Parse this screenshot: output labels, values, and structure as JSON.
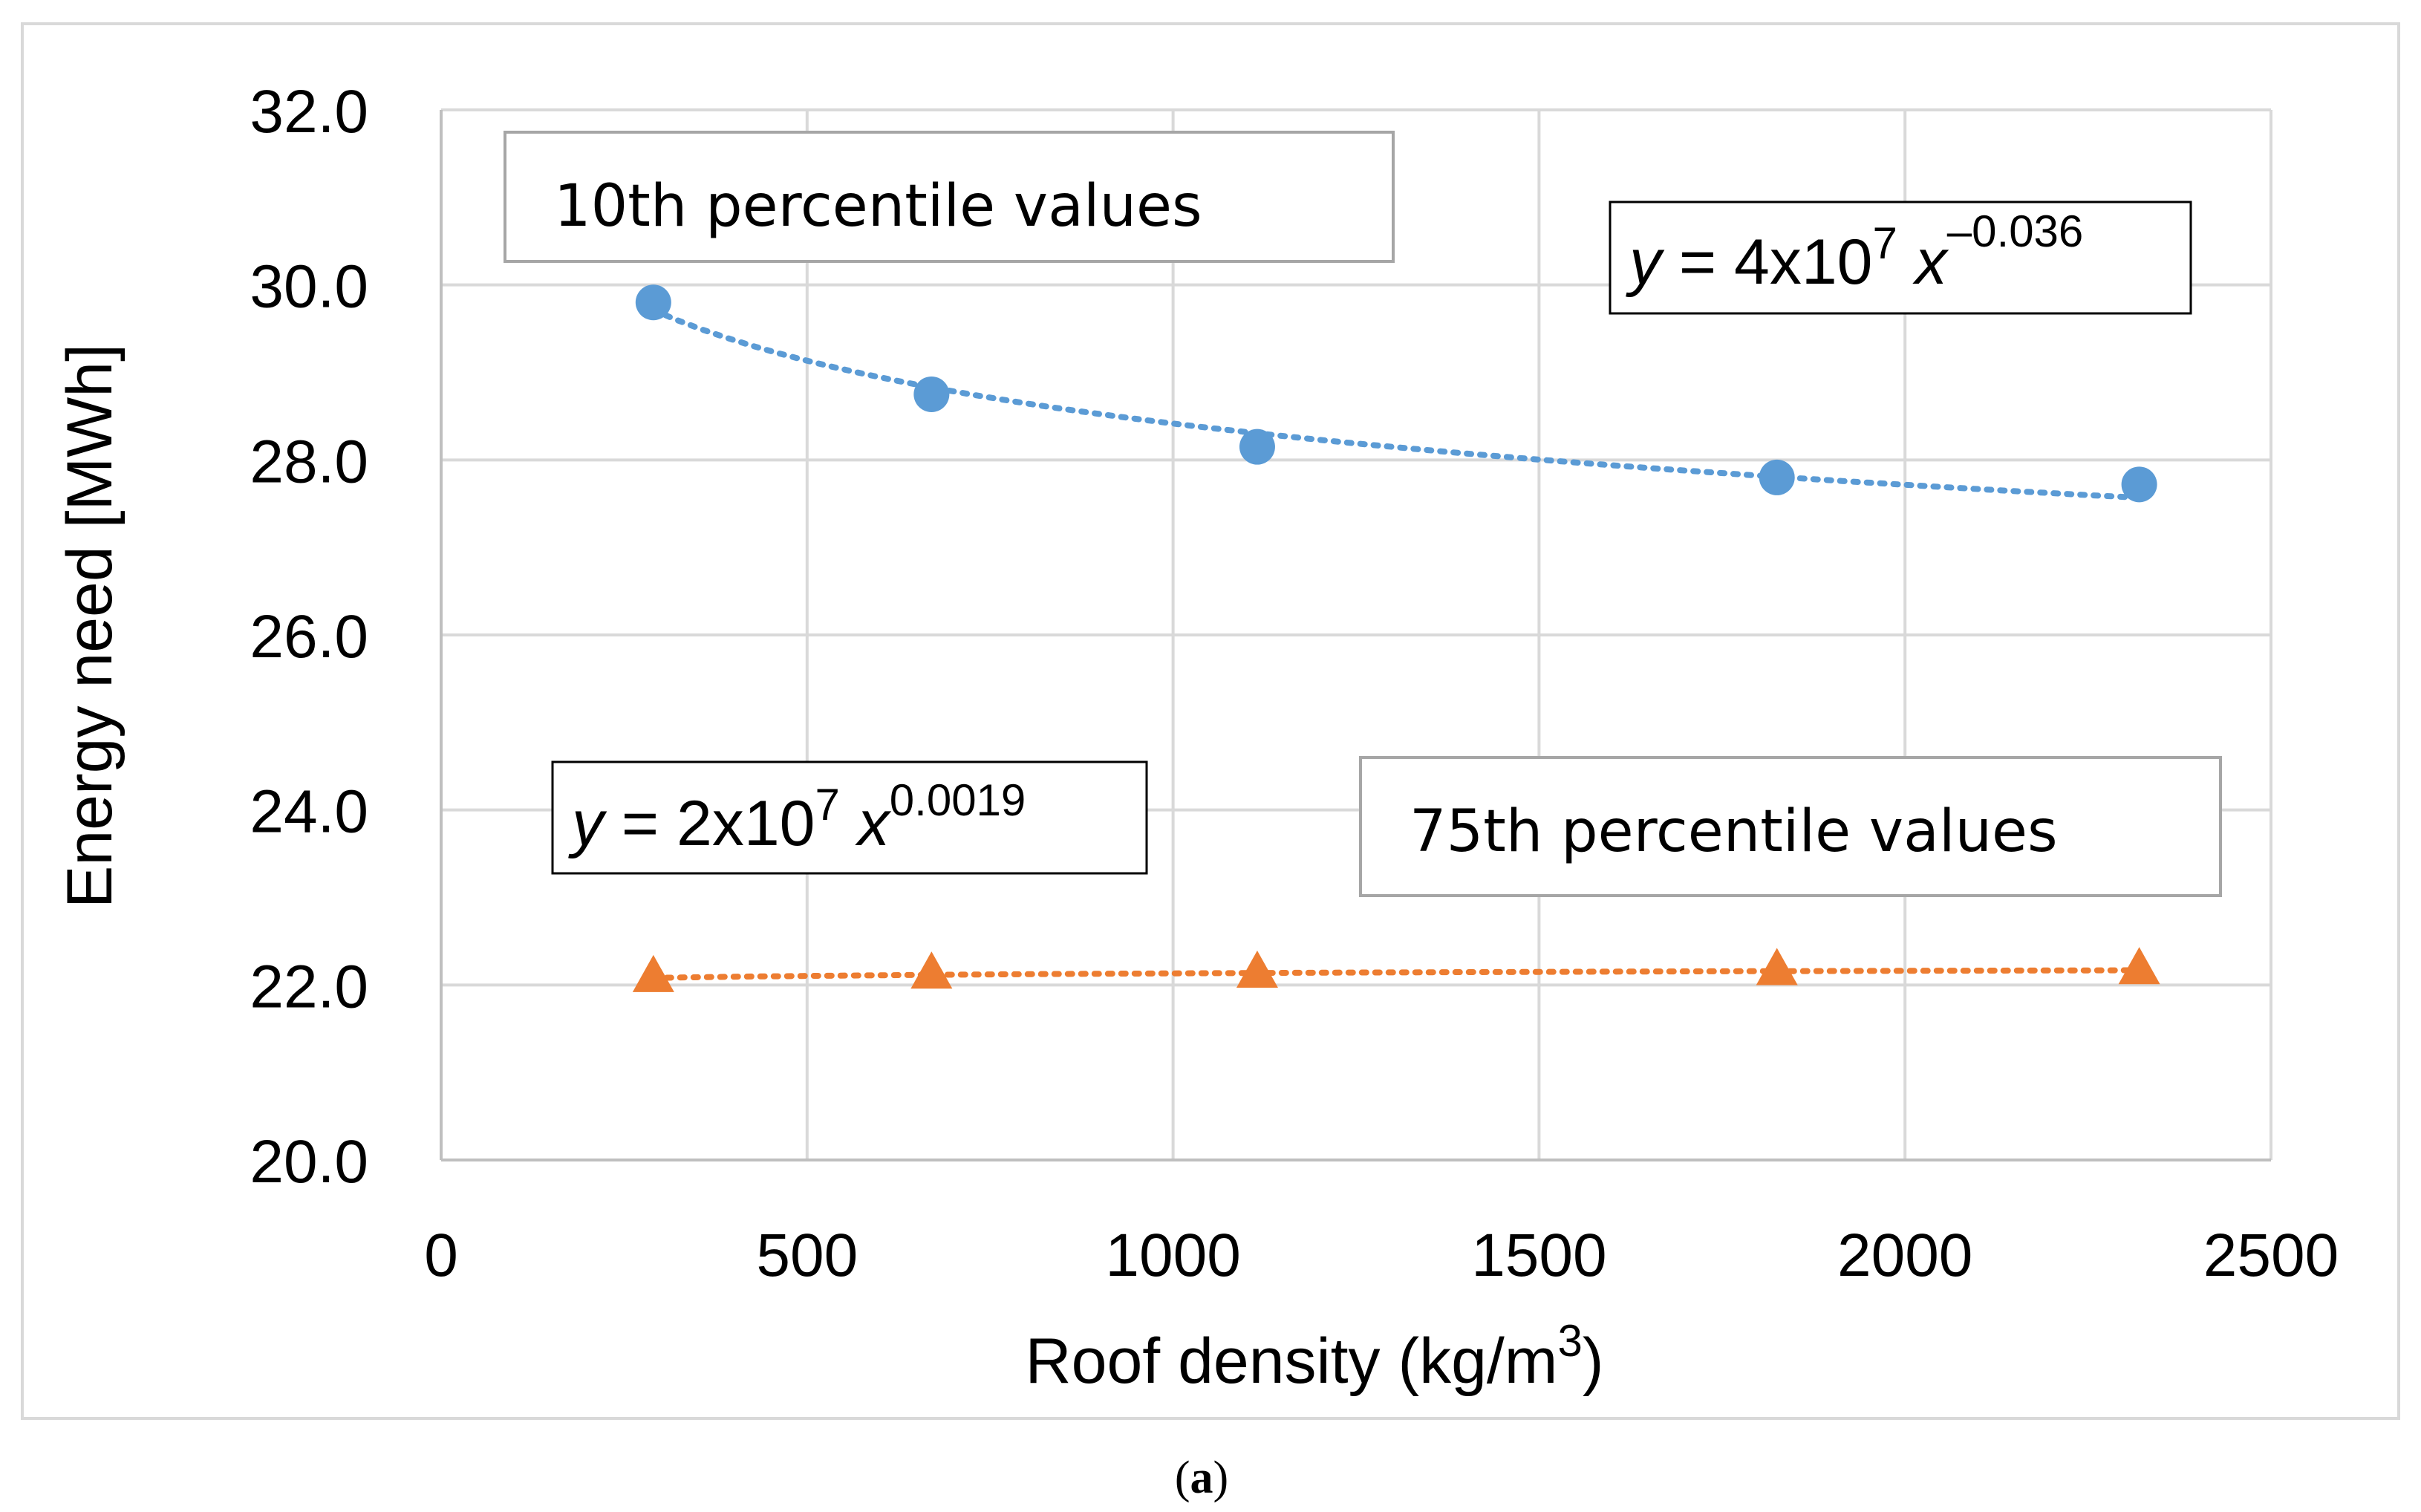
{
  "chart_data": {
    "type": "scatter",
    "xlabel": "Roof density (kg/m",
    "xlabel_sup": "3",
    "xlabel_end": ")",
    "ylabel": "Energy need [MWh]",
    "xlim": [
      0,
      2500
    ],
    "ylim": [
      20,
      32
    ],
    "grid": true,
    "x_ticks": [
      0,
      500,
      1000,
      1500,
      2000,
      2500
    ],
    "x_tick_labels": [
      "0",
      "500",
      "1000",
      "1500",
      "2000",
      "2500"
    ],
    "y_ticks": [
      20,
      22,
      24,
      26,
      28,
      30,
      32
    ],
    "y_tick_labels": [
      "20.0",
      "22.0",
      "24.0",
      "26.0",
      "28.0",
      "30.0",
      "32.0"
    ],
    "x": [
      290,
      670,
      1115,
      1825,
      2320
    ],
    "series": [
      {
        "name": "10th percentile values",
        "values": [
          29.8,
          28.75,
          28.15,
          27.8,
          27.72
        ],
        "color": "#5b9bd5",
        "marker": "circle",
        "trendline": {
          "type": "power",
          "coef": 40000000.0,
          "exp": -0.036
        }
      },
      {
        "name": "75th percentile values",
        "values": [
          22.08,
          22.12,
          22.13,
          22.16,
          22.17
        ],
        "color": "#ed7d31",
        "marker": "triangle",
        "trendline": {
          "type": "power",
          "coef": 20000000.0,
          "exp": 0.0019
        }
      }
    ],
    "annotations": {
      "label_10th": "10th percentile values",
      "label_75th": "75th percentile values",
      "eq_10th": {
        "y": "y",
        "eq": " = 4x10",
        "sup1": "7",
        "x": " x",
        "sup2": "–0.036"
      },
      "eq_75th": {
        "y": "y",
        "eq": " = 2x10",
        "sup1": "7",
        "x": " x",
        "sup2": "0.0019"
      }
    }
  },
  "caption": {
    "open": "(",
    "letter": "a",
    "close": ")"
  }
}
